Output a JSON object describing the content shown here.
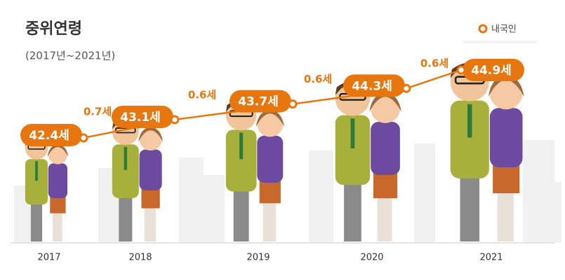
{
  "chart_data": {
    "type": "line",
    "title": "중위연령",
    "subtitle": "(2017년~2021년)",
    "categories": [
      "2017",
      "2018",
      "2019",
      "2020",
      "2021"
    ],
    "series": [
      {
        "name": "내국인",
        "color": "#e8760f",
        "values": [
          42.4,
          43.1,
          43.7,
          44.3,
          44.9
        ],
        "value_labels": [
          "42.4세",
          "43.1세",
          "43.7세",
          "44.3세",
          "44.9세"
        ]
      }
    ],
    "increments": {
      "values": [
        0.7,
        0.6,
        0.6,
        0.6
      ],
      "value_labels": [
        "0.7세",
        "0.6세",
        "0.6세",
        "0.6세"
      ]
    },
    "legend": "top-right"
  }
}
